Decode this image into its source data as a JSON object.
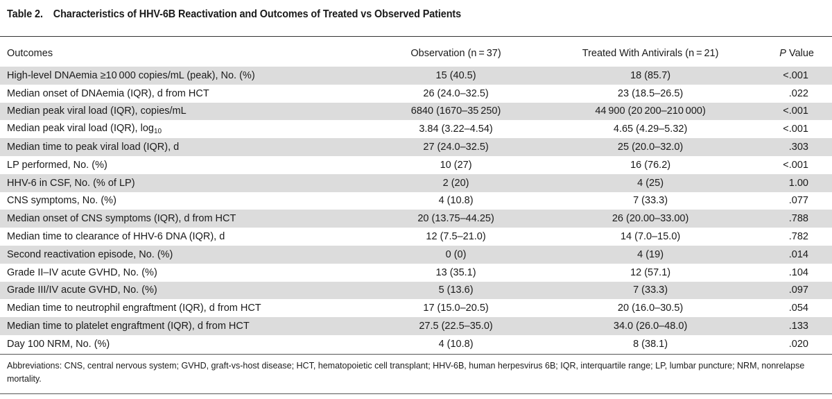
{
  "caption": {
    "label": "Table 2.",
    "title": "Characteristics of HHV-6B Reactivation and Outcomes of Treated vs Observed Patients"
  },
  "header": {
    "col1": "Outcomes",
    "col2": "Observation (n = 37)",
    "col3": "Treated With Antivirals (n = 21)",
    "col4_italic": "P",
    "col4_rest": " Value"
  },
  "rows": [
    {
      "outcome": "High-level DNAemia ≥10 000 copies/mL (peak), No. (%)",
      "observation": "15 (40.5)",
      "treated": "18 (85.7)",
      "p": "<.001"
    },
    {
      "outcome": "Median onset of DNAemia (IQR), d from HCT",
      "observation": "26 (24.0–32.5)",
      "treated": "23 (18.5–26.5)",
      "p": ".022"
    },
    {
      "outcome": "Median peak viral load (IQR), copies/mL",
      "observation": "6840 (1670–35 250)",
      "treated": "44 900 (20 200–210 000)",
      "p": "<.001"
    },
    {
      "outcome_main": "Median peak viral load (IQR), log",
      "outcome_sub": "10",
      "observation": "3.84 (3.22–4.54)",
      "treated": "4.65 (4.29–5.32)",
      "p": "<.001"
    },
    {
      "outcome": "Median time to peak viral load (IQR), d",
      "observation": "27 (24.0–32.5)",
      "treated": "25 (20.0–32.0)",
      "p": ".303"
    },
    {
      "outcome": "LP performed, No. (%)",
      "observation": "10 (27)",
      "treated": "16 (76.2)",
      "p": "<.001"
    },
    {
      "outcome": "HHV-6 in CSF, No. (% of LP)",
      "observation": "2 (20)",
      "treated": "4 (25)",
      "p": "1.00"
    },
    {
      "outcome": "CNS symptoms, No. (%)",
      "observation": "4 (10.8)",
      "treated": "7 (33.3)",
      "p": ".077"
    },
    {
      "outcome": "Median onset of CNS symptoms (IQR), d from HCT",
      "observation": "20 (13.75–44.25)",
      "treated": "26 (20.00–33.00)",
      "p": ".788"
    },
    {
      "outcome": "Median time to clearance of HHV-6 DNA (IQR), d",
      "observation": "12 (7.5–21.0)",
      "treated": "14 (7.0–15.0)",
      "p": ".782"
    },
    {
      "outcome": "Second reactivation episode, No. (%)",
      "observation": "0 (0)",
      "treated": "4 (19)",
      "p": ".014"
    },
    {
      "outcome": "Grade II–IV acute GVHD, No. (%)",
      "observation": "13 (35.1)",
      "treated": "12 (57.1)",
      "p": ".104"
    },
    {
      "outcome": "Grade III/IV acute GVHD, No. (%)",
      "observation": "5 (13.6)",
      "treated": "7 (33.3)",
      "p": ".097"
    },
    {
      "outcome": "Median time to neutrophil engraftment (IQR), d from HCT",
      "observation": "17 (15.0–20.5)",
      "treated": "20 (16.0–30.5)",
      "p": ".054"
    },
    {
      "outcome": "Median time to platelet engraftment (IQR), d from HCT",
      "observation": "27.5 (22.5–35.0)",
      "treated": "34.0 (26.0–48.0)",
      "p": ".133"
    },
    {
      "outcome": "Day 100 NRM, No. (%)",
      "observation": "4 (10.8)",
      "treated": "8 (38.1)",
      "p": ".020"
    }
  ],
  "footnote": "Abbreviations: CNS, central nervous system; GVHD, graft-vs-host disease; HCT, hematopoietic cell transplant; HHV-6B, human herpesvirus 6B; IQR, interquartile range; LP, lumbar puncture; NRM, nonrelapse mortality."
}
